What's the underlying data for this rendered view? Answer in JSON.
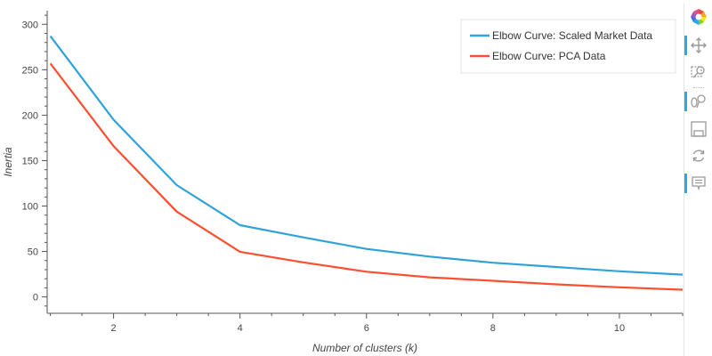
{
  "chart_data": {
    "type": "line",
    "title": "",
    "xlabel": "Number of clusters (k)",
    "ylabel": "Inertia",
    "xlim": [
      0.95,
      11
    ],
    "ylim": [
      -18,
      315
    ],
    "xticks": [
      2,
      4,
      6,
      8,
      10
    ],
    "yticks": [
      0,
      50,
      100,
      150,
      200,
      250,
      300
    ],
    "grid": false,
    "legend_position": "top-right",
    "x": [
      1,
      2,
      3,
      4,
      5,
      6,
      7,
      8,
      9,
      10,
      11
    ],
    "series": [
      {
        "name": "Elbow Curve: Scaled Market Data",
        "color": "#30a2da",
        "values": [
          287,
          195,
          123,
          79.0,
          65.5,
          52.8,
          44.4,
          37.6,
          32.9,
          28.2,
          24.5
        ]
      },
      {
        "name": "Elbow Curve: PCA Data",
        "color": "#fc4f30",
        "values": [
          256.9,
          165.9,
          93.8,
          49.7,
          38.0,
          27.7,
          21.6,
          17.7,
          13.8,
          10.6,
          8.0
        ]
      }
    ]
  },
  "toolbar": {
    "tools": [
      {
        "name": "bokeh-logo-icon",
        "active": false
      },
      {
        "name": "pan-icon",
        "active": true
      },
      {
        "name": "box-zoom-icon",
        "active": false
      },
      {
        "name": "wheel-zoom-icon",
        "active": true
      },
      {
        "name": "save-icon",
        "active": false
      },
      {
        "name": "reset-icon",
        "active": false
      },
      {
        "name": "hover-icon",
        "active": true
      }
    ]
  }
}
